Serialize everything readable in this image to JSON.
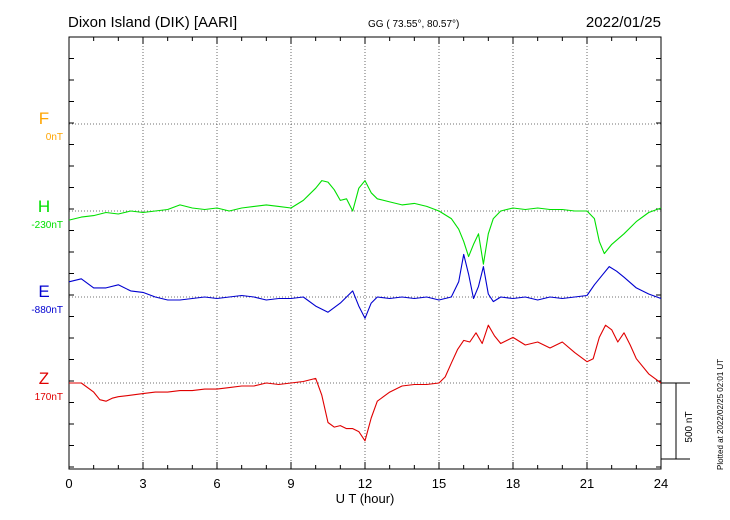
{
  "header": {
    "station": "Dixon Island (DIK)  [AARI]",
    "coords": "GG ( 73.55°,  80.57°)",
    "date": "2022/01/25"
  },
  "side_note": "Plotted at 2022/02/25 02:01 UT",
  "scale_bar_label": "500 nT",
  "colors": {
    "F": "#ffa500",
    "H": "#00e000",
    "E": "#0000d0",
    "Z": "#e00000"
  },
  "chart_data": {
    "type": "line",
    "title": "Dixon Island (DIK)  [AARI]",
    "xlabel": "U T (hour)",
    "ylabel": "",
    "xlim": [
      0,
      24
    ],
    "x_ticks": [
      "0",
      "3",
      "6",
      "9",
      "12",
      "15",
      "18",
      "21",
      "24"
    ],
    "grid": true,
    "scale_bar_nT": 500,
    "series": [
      {
        "name": "F",
        "baseline": "0nT",
        "x": [],
        "values": []
      },
      {
        "name": "H",
        "baseline": "-230nT",
        "x": [
          0,
          0.5,
          1,
          1.5,
          2,
          2.5,
          3,
          3.5,
          4,
          4.5,
          5,
          5.5,
          6,
          6.5,
          7,
          7.5,
          8,
          8.5,
          9,
          9.5,
          10,
          10.25,
          10.5,
          10.75,
          11,
          11.25,
          11.5,
          11.75,
          12,
          12.25,
          12.5,
          13,
          13.5,
          14,
          14.5,
          15,
          15.5,
          15.8,
          16,
          16.2,
          16.4,
          16.6,
          16.8,
          17,
          17.2,
          17.5,
          18,
          18.5,
          19,
          19.5,
          20,
          20.5,
          21,
          21.3,
          21.5,
          21.7,
          22,
          22.5,
          23,
          23.5,
          24
        ],
        "values": [
          -60,
          -40,
          -30,
          -10,
          -20,
          0,
          -10,
          0,
          10,
          40,
          20,
          10,
          20,
          0,
          20,
          30,
          40,
          30,
          20,
          70,
          150,
          200,
          190,
          140,
          70,
          80,
          0,
          150,
          200,
          120,
          80,
          60,
          40,
          50,
          30,
          0,
          -50,
          -120,
          -200,
          -300,
          -220,
          -150,
          -350,
          -150,
          -50,
          0,
          20,
          10,
          20,
          10,
          10,
          0,
          0,
          -50,
          -200,
          -280,
          -220,
          -150,
          -70,
          -10,
          20
        ]
      },
      {
        "name": "E",
        "baseline": "-880nT",
        "x": [
          0,
          0.5,
          1,
          1.5,
          2,
          2.5,
          3,
          3.5,
          4,
          4.5,
          5,
          5.5,
          6,
          6.5,
          7,
          7.5,
          8,
          8.5,
          9,
          9.5,
          10,
          10.5,
          11,
          11.25,
          11.5,
          11.75,
          12,
          12.25,
          12.5,
          13,
          13.5,
          14,
          14.5,
          15,
          15.5,
          15.8,
          16,
          16.2,
          16.4,
          16.6,
          16.8,
          17,
          17.2,
          17.5,
          18,
          18.5,
          19,
          19.5,
          20,
          20.5,
          21,
          21.3,
          21.6,
          21.9,
          22.2,
          22.5,
          23,
          23.5,
          24
        ],
        "values": [
          100,
          120,
          60,
          60,
          80,
          40,
          30,
          0,
          -20,
          -20,
          -10,
          0,
          -10,
          0,
          10,
          0,
          -20,
          -10,
          -10,
          0,
          -60,
          -100,
          -40,
          0,
          40,
          -60,
          -140,
          -40,
          0,
          -10,
          0,
          -10,
          0,
          -20,
          0,
          100,
          280,
          150,
          -10,
          70,
          200,
          20,
          -30,
          0,
          -10,
          0,
          -20,
          0,
          -10,
          0,
          10,
          80,
          140,
          200,
          170,
          130,
          60,
          20,
          -10
        ]
      },
      {
        "name": "Z",
        "baseline": "170nT",
        "x": [
          0,
          0.5,
          1,
          1.25,
          1.5,
          1.75,
          2,
          2.5,
          3,
          3.5,
          4,
          4.5,
          5,
          5.5,
          6,
          6.5,
          7,
          7.5,
          8,
          8.5,
          9,
          9.5,
          10,
          10.25,
          10.5,
          10.75,
          11,
          11.25,
          11.5,
          11.75,
          12,
          12.25,
          12.5,
          13,
          13.5,
          14,
          14.5,
          15,
          15.25,
          15.5,
          15.75,
          16,
          16.25,
          16.5,
          16.75,
          17,
          17.25,
          17.5,
          18,
          18.5,
          19,
          19.5,
          20,
          20.5,
          21,
          21.25,
          21.5,
          21.75,
          22,
          22.25,
          22.5,
          22.75,
          23,
          23.5,
          24
        ],
        "values": [
          0,
          0,
          -60,
          -110,
          -120,
          -100,
          -90,
          -80,
          -70,
          -60,
          -60,
          -50,
          -50,
          -40,
          -40,
          -30,
          -20,
          -20,
          0,
          -10,
          0,
          10,
          30,
          -80,
          -260,
          -290,
          -280,
          -300,
          -300,
          -320,
          -380,
          -230,
          -120,
          -60,
          -20,
          -10,
          -10,
          0,
          40,
          130,
          220,
          280,
          270,
          330,
          260,
          380,
          310,
          260,
          300,
          250,
          270,
          230,
          270,
          200,
          140,
          160,
          300,
          380,
          350,
          270,
          330,
          250,
          160,
          60,
          0
        ]
      }
    ]
  }
}
